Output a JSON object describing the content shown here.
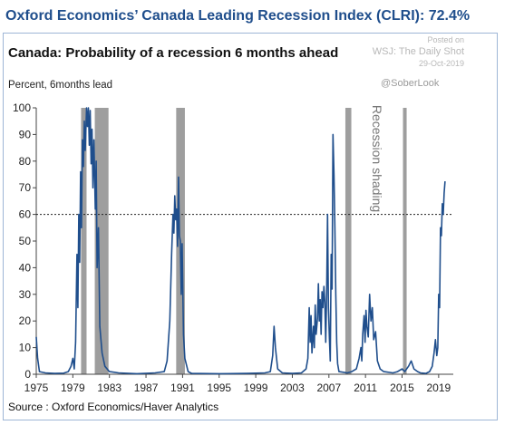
{
  "banner": "Oxford Economics’ Canada Leading Recession Index (CLRI): 72.4%",
  "posted": {
    "line1": "Posted on",
    "line2": "WSJ: The Daily Shot",
    "line3": "29-Oct-2019"
  },
  "handle": "@SoberLook",
  "source": "Source : Oxford Economics/Haver Analytics",
  "chart_data": {
    "type": "line",
    "title": "Canada: Probability of a recession 6 months ahead",
    "ylabel": "Percent, 6months lead",
    "xlabel": "",
    "xlim": [
      1975,
      2020.6
    ],
    "ylim": [
      0,
      100
    ],
    "yticks": [
      0,
      10,
      20,
      30,
      40,
      50,
      60,
      70,
      80,
      90,
      100
    ],
    "xticks": [
      1975,
      1979,
      1983,
      1987,
      1991,
      1995,
      1999,
      2003,
      2007,
      2011,
      2015,
      2019
    ],
    "threshold": 60,
    "line_color": "#1f4e8c",
    "shading_color": "#9e9e9e",
    "shading_label": "Recession shading",
    "recessions": [
      [
        1979.9,
        1980.5
      ],
      [
        1981.4,
        1982.9
      ],
      [
        1990.3,
        1991.25
      ],
      [
        2008.8,
        2009.45
      ],
      [
        2015.1,
        2015.5
      ]
    ],
    "series": [
      {
        "values": [
          [
            1975.0,
            14
          ],
          [
            1975.15,
            6
          ],
          [
            1975.35,
            1
          ],
          [
            1976.0,
            0.5
          ],
          [
            1977.0,
            0.3
          ],
          [
            1978.0,
            0.4
          ],
          [
            1978.5,
            1
          ],
          [
            1978.8,
            3
          ],
          [
            1979.0,
            6
          ],
          [
            1979.15,
            2
          ],
          [
            1979.3,
            12
          ],
          [
            1979.45,
            45
          ],
          [
            1979.55,
            25
          ],
          [
            1979.65,
            60
          ],
          [
            1979.75,
            42
          ],
          [
            1979.85,
            76
          ],
          [
            1979.95,
            55
          ],
          [
            1980.05,
            88
          ],
          [
            1980.15,
            78
          ],
          [
            1980.25,
            95
          ],
          [
            1980.35,
            84
          ],
          [
            1980.5,
            100
          ],
          [
            1980.6,
            93
          ],
          [
            1980.7,
            100
          ],
          [
            1980.8,
            86
          ],
          [
            1980.9,
            99
          ],
          [
            1981.0,
            79
          ],
          [
            1981.1,
            92
          ],
          [
            1981.2,
            70
          ],
          [
            1981.3,
            88
          ],
          [
            1981.45,
            62
          ],
          [
            1981.55,
            80
          ],
          [
            1981.65,
            40
          ],
          [
            1981.8,
            55
          ],
          [
            1981.95,
            18
          ],
          [
            1982.2,
            8
          ],
          [
            1982.5,
            3
          ],
          [
            1983.0,
            1
          ],
          [
            1984.0,
            0.5
          ],
          [
            1986.0,
            0.2
          ],
          [
            1988.0,
            0.5
          ],
          [
            1989.0,
            1
          ],
          [
            1989.3,
            5
          ],
          [
            1989.6,
            20
          ],
          [
            1989.8,
            45
          ],
          [
            1989.95,
            60
          ],
          [
            1990.05,
            53
          ],
          [
            1990.15,
            67
          ],
          [
            1990.25,
            58
          ],
          [
            1990.35,
            62
          ],
          [
            1990.45,
            48
          ],
          [
            1990.55,
            74
          ],
          [
            1990.65,
            52
          ],
          [
            1990.75,
            50
          ],
          [
            1990.85,
            30
          ],
          [
            1990.95,
            49
          ],
          [
            1991.1,
            15
          ],
          [
            1991.25,
            6
          ],
          [
            1991.6,
            1
          ],
          [
            1992.0,
            0.3
          ],
          [
            1995.0,
            0.2
          ],
          [
            1998.0,
            0.3
          ],
          [
            2000.0,
            0.5
          ],
          [
            2000.6,
            1
          ],
          [
            2000.85,
            7
          ],
          [
            2001.0,
            18
          ],
          [
            2001.15,
            10
          ],
          [
            2001.4,
            2
          ],
          [
            2001.9,
            0.5
          ],
          [
            2003.0,
            0.3
          ],
          [
            2004.0,
            0.5
          ],
          [
            2004.5,
            2
          ],
          [
            2004.7,
            6
          ],
          [
            2004.85,
            25
          ],
          [
            2004.95,
            12
          ],
          [
            2005.05,
            22
          ],
          [
            2005.15,
            8
          ],
          [
            2005.3,
            18
          ],
          [
            2005.4,
            10
          ],
          [
            2005.5,
            26
          ],
          [
            2005.6,
            15
          ],
          [
            2005.75,
            21
          ],
          [
            2005.85,
            34
          ],
          [
            2005.95,
            20
          ],
          [
            2006.05,
            28
          ],
          [
            2006.15,
            15
          ],
          [
            2006.25,
            31
          ],
          [
            2006.35,
            25
          ],
          [
            2006.45,
            33
          ],
          [
            2006.55,
            27
          ],
          [
            2006.65,
            12
          ],
          [
            2006.75,
            30
          ],
          [
            2006.85,
            60
          ],
          [
            2006.95,
            25
          ],
          [
            2007.05,
            14
          ],
          [
            2007.15,
            5
          ],
          [
            2007.25,
            45
          ],
          [
            2007.35,
            32
          ],
          [
            2007.45,
            90
          ],
          [
            2007.55,
            75
          ],
          [
            2007.65,
            55
          ],
          [
            2007.75,
            30
          ],
          [
            2007.85,
            12
          ],
          [
            2007.95,
            4
          ],
          [
            2008.1,
            1
          ],
          [
            2009.0,
            0.5
          ],
          [
            2009.5,
            1
          ],
          [
            2010.0,
            2
          ],
          [
            2010.3,
            6
          ],
          [
            2010.5,
            10
          ],
          [
            2010.6,
            5
          ],
          [
            2010.7,
            15
          ],
          [
            2010.85,
            22
          ],
          [
            2010.95,
            12
          ],
          [
            2011.05,
            24
          ],
          [
            2011.15,
            18
          ],
          [
            2011.3,
            14
          ],
          [
            2011.45,
            30
          ],
          [
            2011.6,
            20
          ],
          [
            2011.75,
            25
          ],
          [
            2011.9,
            13
          ],
          [
            2012.1,
            16
          ],
          [
            2012.3,
            5
          ],
          [
            2012.6,
            2
          ],
          [
            2013.0,
            1
          ],
          [
            2014.0,
            0.5
          ],
          [
            2014.5,
            1
          ],
          [
            2015.0,
            2
          ],
          [
            2015.3,
            1
          ],
          [
            2015.7,
            3
          ],
          [
            2016.0,
            5
          ],
          [
            2016.3,
            2
          ],
          [
            2016.7,
            1
          ],
          [
            2017.0,
            0.5
          ],
          [
            2017.6,
            0.3
          ],
          [
            2018.0,
            1
          ],
          [
            2018.3,
            3
          ],
          [
            2018.5,
            8
          ],
          [
            2018.65,
            13
          ],
          [
            2018.8,
            7
          ],
          [
            2018.9,
            10
          ],
          [
            2019.0,
            30
          ],
          [
            2019.1,
            25
          ],
          [
            2019.2,
            55
          ],
          [
            2019.3,
            52
          ],
          [
            2019.4,
            64
          ],
          [
            2019.5,
            60
          ],
          [
            2019.6,
            68
          ],
          [
            2019.7,
            72.4
          ]
        ]
      }
    ]
  }
}
